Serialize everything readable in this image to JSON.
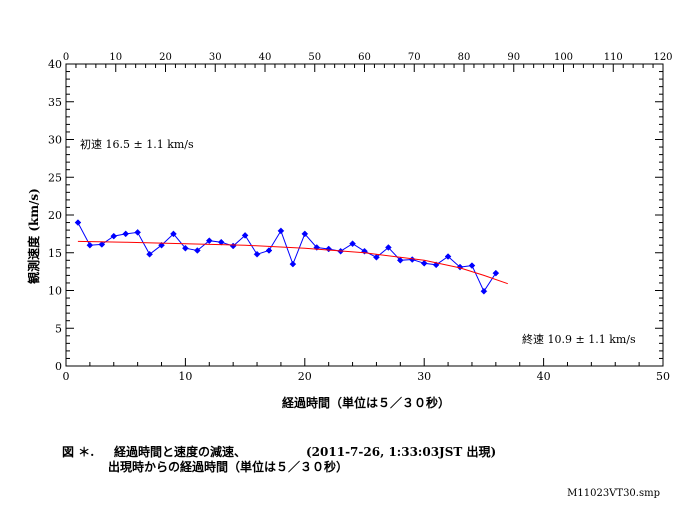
{
  "chart_data": {
    "type": "line",
    "x_bottom": {
      "min": 0,
      "max": 50,
      "ticks": [
        0,
        10,
        20,
        30,
        40,
        50
      ]
    },
    "x_top": {
      "min": 0,
      "max": 120,
      "ticks": [
        0,
        10,
        20,
        30,
        40,
        50,
        60,
        70,
        80,
        90,
        100,
        110,
        120
      ]
    },
    "y": {
      "min": 0,
      "max": 40,
      "ticks": [
        0,
        5,
        10,
        15,
        20,
        25,
        30,
        35,
        40
      ]
    },
    "xlabel": "経過時間（単位は５／３０秒）",
    "ylabel": "観測速度 (km/s)",
    "grid": false,
    "series": [
      {
        "color": "#0000ff",
        "marker": "diamond",
        "x": [
          1,
          2,
          3,
          4,
          5,
          6,
          7,
          8,
          9,
          10,
          11,
          12,
          13,
          14,
          15,
          16,
          17,
          18,
          19,
          20,
          21,
          22,
          23,
          24,
          25,
          26,
          27,
          28,
          29,
          30,
          31,
          32,
          33,
          34,
          35,
          36
        ],
        "y": [
          19.0,
          16.0,
          16.1,
          17.2,
          17.5,
          17.7,
          14.8,
          16.0,
          17.5,
          15.6,
          15.3,
          16.6,
          16.4,
          15.9,
          17.3,
          14.8,
          15.3,
          17.9,
          13.5,
          17.5,
          15.7,
          15.5,
          15.2,
          16.2,
          15.2,
          14.4,
          15.7,
          14.0,
          14.1,
          13.6,
          13.4,
          14.5,
          13.1,
          13.3,
          9.9,
          12.3
        ]
      },
      {
        "color": "#ff0000",
        "marker": "none",
        "x": [
          1,
          5,
          10,
          15,
          20,
          25,
          30,
          33,
          35,
          37
        ],
        "y": [
          16.5,
          16.4,
          16.2,
          16.0,
          15.6,
          15.0,
          14.0,
          13.0,
          12.0,
          10.9
        ]
      }
    ],
    "annotations": {
      "initial_speed": "初速 16.5 ± 1.1 km/s",
      "final_speed": "終速 10.9 ± 1.1 km/s"
    }
  },
  "caption": {
    "line1_label": "図 ＊.",
    "line1_text": "経過時間と速度の減速、",
    "line1_event": "(2011-7-26, 1:33:03JST  出現)",
    "line2": "出現時からの経過時間（単位は５／３０秒）"
  },
  "filename": "M11023VT30.smp",
  "colors": {
    "data": "#0000ff",
    "fit": "#ff0000",
    "axis": "#000000"
  }
}
